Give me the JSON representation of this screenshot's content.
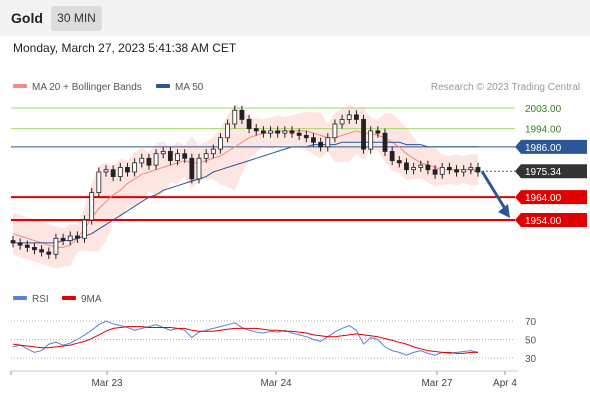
{
  "header": {
    "title": "Gold",
    "timeframe": "30 MIN"
  },
  "timestamp": "Monday, March 27, 2023 5:41:38 AM CET",
  "legend": [
    {
      "label": "MA 20 + Bollinger Bands",
      "color": "#f28b82"
    },
    {
      "label": "MA 50",
      "color": "#2b5797"
    }
  ],
  "credit": "Research © 2023 Trading Central",
  "rsi_legend": [
    {
      "label": "RSI",
      "color": "#5b7fd6"
    },
    {
      "label": "9MA",
      "color": "#e00000"
    }
  ],
  "colors": {
    "resistance": "#a6d96a",
    "pivot": "#2b5797",
    "support": "#e00000",
    "arrow": "#2b5797",
    "bollinger": "#fde0dd"
  },
  "chart_data": {
    "type": "line",
    "price_levels": [
      {
        "value": 2003.0,
        "label": "2003.00",
        "kind": "resistance"
      },
      {
        "value": 1994.0,
        "label": "1994.00",
        "kind": "resistance"
      },
      {
        "value": 1986.0,
        "label": "1986.00",
        "kind": "pivot"
      },
      {
        "value": 1975.34,
        "label": "1975.34",
        "kind": "last"
      },
      {
        "value": 1964.0,
        "label": "1964.00",
        "kind": "support"
      },
      {
        "value": 1954.0,
        "label": "1954.00",
        "kind": "support"
      }
    ],
    "x_ticks": [
      "Mar 23",
      "Mar 24",
      "Mar 27",
      "Apr 4"
    ],
    "rsi_ticks": [
      70,
      50,
      30
    ],
    "price_close": [
      1944,
      1943,
      1942,
      1941,
      1940,
      1939,
      1946,
      1945,
      1947,
      1946,
      1954,
      1966,
      1975,
      1976,
      1973,
      1977,
      1975,
      1979,
      1981,
      1978,
      1983,
      1984,
      1980,
      1983,
      1981,
      1972,
      1981,
      1983,
      1985,
      1990,
      1996,
      2002,
      1998,
      1994,
      1993,
      1992,
      1993,
      1992,
      1993,
      1992,
      1991,
      1990,
      1988,
      1986,
      1990,
      1996,
      1998,
      2000,
      1998,
      1985,
      1993,
      1992,
      1984,
      1980,
      1979,
      1976,
      1977,
      1978,
      1976,
      1974,
      1977,
      1976,
      1975,
      1976,
      1977,
      1975
    ],
    "ma20": [
      1948,
      1947,
      1946,
      1945,
      1944,
      1943,
      1942,
      1942,
      1943,
      1946,
      1950,
      1955,
      1959,
      1962,
      1965,
      1967,
      1970,
      1972,
      1974,
      1975,
      1976,
      1977,
      1978,
      1979,
      1980,
      1979,
      1979,
      1980,
      1981,
      1982,
      1984,
      1986,
      1988,
      1990,
      1991,
      1992,
      1992,
      1993,
      1993,
      1993,
      1993,
      1993,
      1992,
      1991,
      1990,
      1990,
      1991,
      1992,
      1993,
      1992,
      1992,
      1991,
      1990,
      1988,
      1986,
      1983,
      1981,
      1979,
      1978,
      1977,
      1976,
      1976,
      1976,
      1976,
      1976,
      1976
    ],
    "ma50": [
      1944,
      1944,
      1944,
      1944,
      1944,
      1944,
      1944,
      1945,
      1945,
      1946,
      1947,
      1948,
      1950,
      1952,
      1954,
      1956,
      1958,
      1960,
      1962,
      1964,
      1965,
      1967,
      1968,
      1969,
      1970,
      1971,
      1972,
      1973,
      1975,
      1976,
      1977,
      1978,
      1979,
      1980,
      1981,
      1982,
      1983,
      1984,
      1985,
      1986,
      1986,
      1986,
      1987,
      1987,
      1987,
      1987,
      1988,
      1988,
      1988,
      1988,
      1988,
      1988,
      1988,
      1988,
      1988,
      1987,
      1987,
      1987,
      1986,
      1986,
      1986,
      1986,
      1986,
      1986,
      1986,
      1986
    ],
    "rsi": [
      42,
      44,
      40,
      36,
      38,
      45,
      47,
      44,
      46,
      50,
      55,
      60,
      66,
      70,
      67,
      65,
      63,
      60,
      62,
      64,
      66,
      63,
      60,
      62,
      60,
      52,
      58,
      60,
      62,
      64,
      66,
      68,
      63,
      60,
      58,
      57,
      59,
      58,
      60,
      57,
      55,
      53,
      50,
      48,
      53,
      58,
      62,
      65,
      60,
      45,
      52,
      50,
      42,
      38,
      36,
      33,
      36,
      38,
      35,
      33,
      36,
      35,
      36,
      37,
      38,
      36
    ],
    "rsi_ma": [
      45,
      44,
      43,
      42,
      41,
      41,
      42,
      43,
      44,
      46,
      48,
      51,
      55,
      59,
      62,
      63,
      64,
      64,
      64,
      63,
      63,
      63,
      63,
      62,
      62,
      60,
      59,
      59,
      59,
      60,
      61,
      62,
      62,
      62,
      62,
      61,
      60,
      60,
      59,
      59,
      58,
      57,
      55,
      54,
      53,
      53,
      54,
      55,
      56,
      55,
      54,
      53,
      51,
      49,
      47,
      45,
      42,
      40,
      38,
      37,
      36,
      36,
      35,
      35,
      36,
      36
    ]
  }
}
